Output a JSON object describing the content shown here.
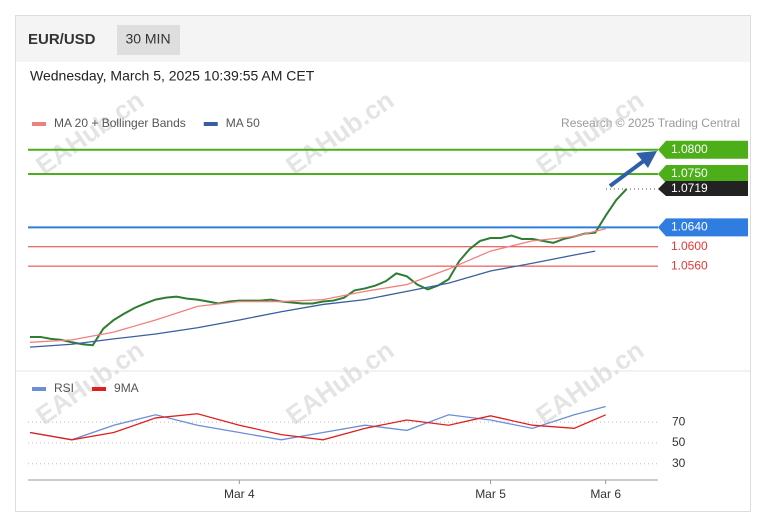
{
  "header": {
    "symbol": "EUR/USD",
    "interval": "30 MIN",
    "datetime": "Wednesday, March 5, 2025 10:39:55 AM CET",
    "credit": "Research © 2025 Trading Central",
    "watermark": "EAHub.cn"
  },
  "chart_data": [
    {
      "type": "line",
      "xlim": [
        0,
        60
      ],
      "ylim": [
        1.035,
        1.082
      ],
      "series": [
        {
          "color": "#2e7d32",
          "x": [
            0,
            1,
            2,
            3,
            4,
            5,
            6,
            7,
            8,
            9,
            10,
            11,
            12,
            13,
            14,
            15,
            16,
            17,
            18,
            19,
            20,
            21,
            22,
            23,
            24,
            25,
            26,
            27,
            28,
            29,
            30,
            31,
            32,
            33,
            34,
            35,
            36,
            37,
            38,
            39,
            40,
            41,
            42,
            43,
            44,
            45,
            46,
            47,
            48,
            49,
            50,
            51,
            52,
            53,
            54,
            55,
            56,
            57
          ],
          "values": [
            1.0414,
            1.0414,
            1.041,
            1.0408,
            1.0403,
            1.0399,
            1.0397,
            1.0431,
            1.0449,
            1.0462,
            1.0474,
            1.0483,
            1.0491,
            1.0495,
            1.0497,
            1.0493,
            1.0491,
            1.0487,
            1.0483,
            1.0487,
            1.0489,
            1.0489,
            1.0489,
            1.0491,
            1.0487,
            1.0485,
            1.0483,
            1.0483,
            1.0487,
            1.0489,
            1.0495,
            1.051,
            1.0514,
            1.052,
            1.0529,
            1.0545,
            1.0539,
            1.0522,
            1.0512,
            1.052,
            1.0533,
            1.057,
            1.0595,
            1.0612,
            1.0618,
            1.0618,
            1.0623,
            1.0616,
            1.0616,
            1.0612,
            1.0608,
            1.0616,
            1.0621,
            1.0627,
            1.0629,
            1.0664,
            1.0696,
            1.0719
          ]
        },
        {
          "name": "MA 20 + Bollinger Bands",
          "color": "#f08080",
          "x": [
            0,
            4,
            8,
            12,
            16,
            20,
            24,
            28,
            32,
            36,
            40,
            44,
            48,
            52,
            55
          ],
          "values": [
            1.0403,
            1.0408,
            1.0424,
            1.0449,
            1.0477,
            1.0487,
            1.0487,
            1.0491,
            1.0508,
            1.0522,
            1.0554,
            1.0591,
            1.0612,
            1.0621,
            1.0637
          ]
        },
        {
          "name": "MA 50",
          "color": "#3a5f9f",
          "x": [
            0,
            4,
            8,
            12,
            16,
            20,
            24,
            28,
            32,
            36,
            40,
            44,
            48,
            52,
            54
          ],
          "values": [
            1.0393,
            1.0399,
            1.041,
            1.042,
            1.0433,
            1.0449,
            1.0466,
            1.0481,
            1.0491,
            1.0508,
            1.0525,
            1.055,
            1.0566,
            1.0583,
            1.0591
          ]
        }
      ],
      "levels": [
        {
          "value": 1.08,
          "label": "1.0800",
          "color": "#4caf1a",
          "style": "box"
        },
        {
          "value": 1.075,
          "label": "1.0750",
          "color": "#4caf1a",
          "style": "box"
        },
        {
          "value": 1.0719,
          "label": "1.0719",
          "color": "#222222",
          "style": "current"
        },
        {
          "value": 1.064,
          "label": "1.0640",
          "color": "#2f7de1",
          "style": "box"
        },
        {
          "value": 1.06,
          "label": "1.0600",
          "color": "#e53935",
          "style": "text"
        },
        {
          "value": 1.056,
          "label": "1.0560",
          "color": "#e53935",
          "style": "text"
        }
      ]
    },
    {
      "type": "line",
      "xlim": [
        0,
        60
      ],
      "ylim": [
        24,
        96
      ],
      "yticks": [
        70,
        50,
        30
      ],
      "grid": true,
      "xticks": [
        {
          "value": 20,
          "label": "Mar 4"
        },
        {
          "value": 44,
          "label": "Mar 5"
        },
        {
          "value": 55,
          "label": "Mar 6"
        }
      ],
      "series": [
        {
          "name": "RSI",
          "color": "#6b8fd6",
          "x": [
            0,
            4,
            8,
            12,
            16,
            20,
            24,
            28,
            32,
            36,
            40,
            44,
            48,
            52,
            55
          ],
          "values": [
            60,
            53,
            67,
            77,
            67,
            60,
            53,
            60,
            67,
            62,
            77,
            72,
            64,
            77,
            85
          ]
        },
        {
          "name": "9MA",
          "color": "#e02020",
          "x": [
            0,
            4,
            8,
            12,
            16,
            20,
            24,
            28,
            32,
            36,
            40,
            44,
            48,
            52,
            55
          ],
          "values": [
            60,
            53,
            60,
            74,
            78,
            67,
            58,
            53,
            64,
            72,
            67,
            76,
            67,
            64,
            77
          ]
        }
      ]
    }
  ]
}
